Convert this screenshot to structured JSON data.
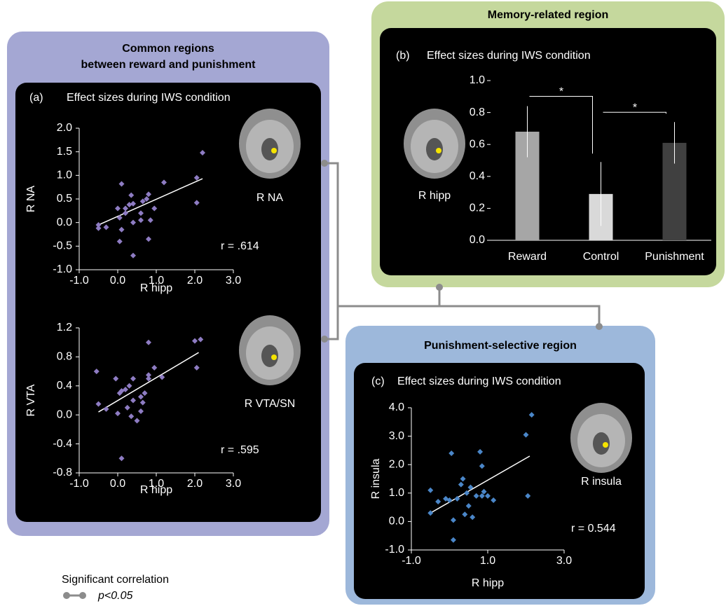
{
  "panels": {
    "common": {
      "title": [
        "Common regions",
        "between reward and punishment"
      ]
    },
    "memory": {
      "title": "Memory-related region"
    },
    "punishment": {
      "title": "Punishment-selective region"
    }
  },
  "legend": {
    "title": "Significant correlation",
    "label": "p<0.05"
  },
  "chart_data": [
    {
      "type": "scatter",
      "panel_label": "(a)",
      "title": "Effect sizes during IWS condition",
      "x_label": "R hipp",
      "y_label": "R NA",
      "region_label": "R NA",
      "annotation": "r = .614",
      "color": "#8e7cc3",
      "x": [
        -0.5,
        -0.5,
        -0.3,
        0.0,
        0.05,
        0.1,
        0.1,
        0.05,
        0.2,
        0.2,
        0.3,
        0.4,
        0.4,
        0.4,
        0.35,
        0.6,
        0.6,
        0.65,
        0.75,
        0.8,
        0.85,
        0.8,
        0.95,
        1.2,
        2.05,
        2.05,
        2.2
      ],
      "values": [
        -0.05,
        -0.12,
        -0.1,
        0.3,
        0.1,
        0.82,
        -0.15,
        -0.4,
        0.3,
        0.2,
        0.38,
        0.4,
        0.0,
        -0.7,
        0.58,
        0.2,
        0.05,
        0.45,
        0.5,
        0.6,
        0.05,
        -0.35,
        0.3,
        0.85,
        0.95,
        0.42,
        1.48
      ],
      "fit": {
        "x": [
          -0.5,
          2.2
        ],
        "values": [
          -0.05,
          0.93
        ]
      },
      "xlim": [
        -1,
        3
      ],
      "xticks": [
        {
          "value": -1,
          "label": "-1.0"
        },
        {
          "value": 0,
          "label": "0.0"
        },
        {
          "value": 1,
          "label": "1.0"
        },
        {
          "value": 2,
          "label": "2.0"
        },
        {
          "value": 3,
          "label": "3.0"
        }
      ],
      "ylim": [
        -1,
        2
      ],
      "yticks": [
        {
          "value": -1,
          "label": "-1.0"
        },
        -0.5,
        {
          "value": 0,
          "label": "0.0"
        },
        0.5,
        {
          "value": 1,
          "label": "1.0"
        },
        1.5,
        {
          "value": 2,
          "label": "2.0"
        }
      ]
    },
    {
      "type": "scatter",
      "x_label": "R hipp",
      "y_label": "R VTA",
      "region_label": "R VTA/SN",
      "annotation": "r = .595",
      "color": "#8e7cc3",
      "x": [
        -0.55,
        -0.5,
        -0.3,
        -0.05,
        0.0,
        0.05,
        0.1,
        0.1,
        0.2,
        0.25,
        0.3,
        0.35,
        0.4,
        0.4,
        0.5,
        0.6,
        0.65,
        0.7,
        0.6,
        0.8,
        0.8,
        0.8,
        0.95,
        1.15,
        2.0,
        2.05,
        2.15
      ],
      "values": [
        0.6,
        0.15,
        0.08,
        0.5,
        0.02,
        0.3,
        0.33,
        -0.6,
        0.35,
        0.1,
        0.4,
        -0.02,
        0.5,
        0.2,
        -0.08,
        0.25,
        0.17,
        0.3,
        0.05,
        0.55,
        0.5,
        1.0,
        0.65,
        0.52,
        1.02,
        0.65,
        1.04
      ],
      "fit": {
        "x": [
          -0.5,
          2.1
        ],
        "values": [
          0.04,
          0.86
        ]
      },
      "xlim": [
        -1,
        3
      ],
      "xticks": [
        {
          "value": -1,
          "label": "-1.0"
        },
        {
          "value": 0,
          "label": "0.0"
        },
        {
          "value": 1,
          "label": "1.0"
        },
        {
          "value": 2,
          "label": "2.0"
        },
        {
          "value": 3,
          "label": "3.0"
        }
      ],
      "ylim": [
        -0.8,
        1.2
      ],
      "yticks": [
        -0.8,
        -0.4,
        {
          "value": 0,
          "label": "0.0"
        },
        0.4,
        0.8,
        1.2
      ]
    },
    {
      "type": "bar",
      "panel_label": "(b)",
      "title": "Effect sizes during IWS condition",
      "region_label": "R hipp",
      "categories": [
        "Reward",
        "Control",
        "Punishment"
      ],
      "values": [
        0.68,
        0.29,
        0.61
      ],
      "errors": [
        0.16,
        0.2,
        0.13
      ],
      "colors": [
        "#a6a6a6",
        "#d9d9d9",
        "#404040"
      ],
      "annotations": [
        "*",
        "*"
      ],
      "ylim": [
        0,
        1
      ],
      "yticks": [
        {
          "value": 0,
          "label": "0.0"
        },
        0.2,
        0.4,
        0.6,
        0.8,
        {
          "value": 1,
          "label": "1.0"
        }
      ]
    },
    {
      "type": "scatter",
      "panel_label": "(c)",
      "title": "Effect sizes during IWS condition",
      "x_label": "R hipp",
      "y_label": "R insula",
      "region_label": "R insula",
      "annotation": "r = 0.544",
      "color": "#4a86c8",
      "x": [
        -0.5,
        -0.5,
        -0.3,
        -0.1,
        0.0,
        0.05,
        0.1,
        0.1,
        0.2,
        0.3,
        0.35,
        0.4,
        0.45,
        0.5,
        0.55,
        0.6,
        0.7,
        0.8,
        0.85,
        0.85,
        0.9,
        1.0,
        1.15,
        2.0,
        2.05,
        2.15
      ],
      "values": [
        1.1,
        0.3,
        0.7,
        0.8,
        0.75,
        2.4,
        0.05,
        -0.65,
        0.8,
        1.3,
        1.5,
        0.25,
        1.0,
        0.55,
        1.2,
        0.15,
        0.9,
        2.45,
        1.95,
        0.9,
        1.05,
        0.9,
        0.75,
        3.05,
        0.9,
        3.75
      ],
      "fit": {
        "x": [
          -0.5,
          2.1
        ],
        "values": [
          0.3,
          2.3
        ]
      },
      "xlim": [
        -1,
        3
      ],
      "xticks": [
        {
          "value": -1,
          "label": "-1.0"
        },
        {
          "value": 1,
          "label": "1.0"
        },
        {
          "value": 3,
          "label": "3.0"
        }
      ],
      "ylim": [
        -1,
        4
      ],
      "yticks": [
        {
          "value": -1,
          "label": "-1.0"
        },
        {
          "value": 0,
          "label": "0.0"
        },
        {
          "value": 1,
          "label": "1.0"
        },
        {
          "value": 2,
          "label": "2.0"
        },
        {
          "value": 3,
          "label": "3.0"
        },
        {
          "value": 4,
          "label": "4.0"
        }
      ]
    }
  ]
}
